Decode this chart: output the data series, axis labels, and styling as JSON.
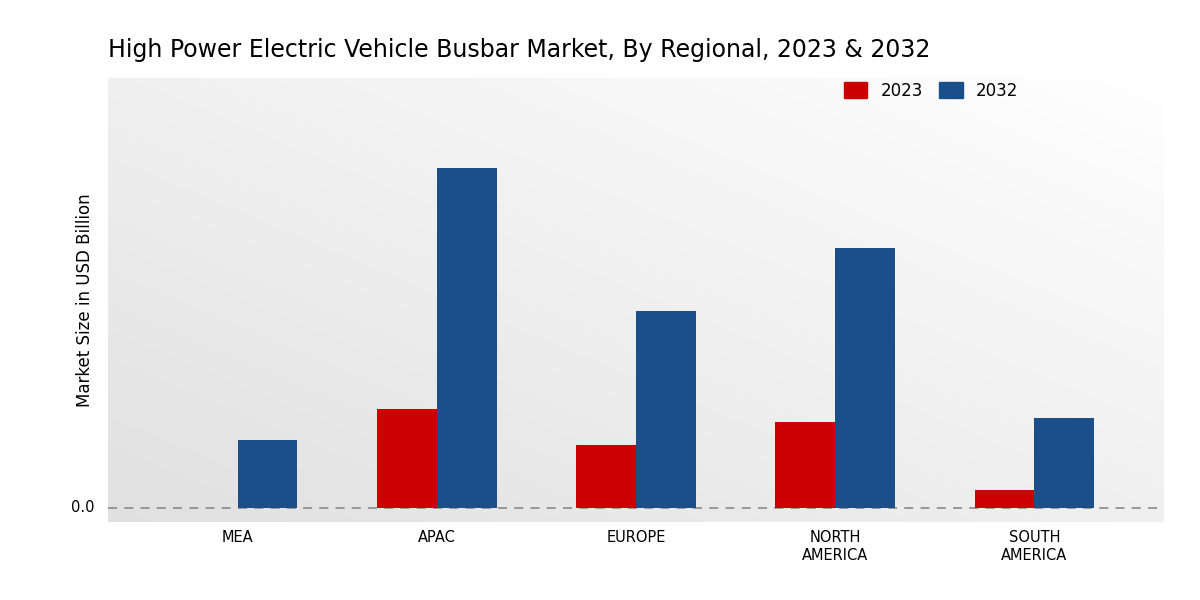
{
  "title": "High Power Electric Vehicle Busbar Market, By Regional, 2023 & 2032",
  "categories": [
    "MEA",
    "APAC",
    "EUROPE",
    "NORTH\nAMERICA",
    "SOUTH\nAMERICA"
  ],
  "values_2023": [
    0.0,
    0.55,
    0.35,
    0.48,
    0.1
  ],
  "values_2032": [
    0.38,
    1.9,
    1.1,
    1.45,
    0.5
  ],
  "color_2023": "#cc0000",
  "color_2032": "#1a4f8a",
  "ylabel": "Market Size in USD Billion",
  "legend_labels": [
    "2023",
    "2032"
  ],
  "bar_width": 0.3,
  "ylim_min": -0.08,
  "ylim_max": 2.4,
  "zero_line_y": 0.0,
  "zero_label": "0.0",
  "title_fontsize": 17,
  "axis_label_fontsize": 12,
  "tick_fontsize": 10.5,
  "legend_fontsize": 12
}
